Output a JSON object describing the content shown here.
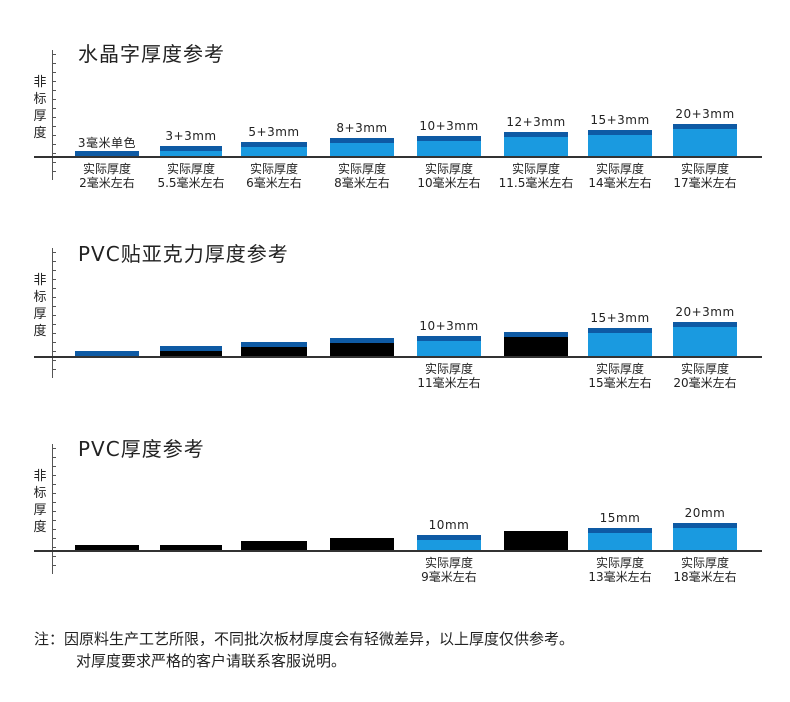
{
  "colors": {
    "blue": "#1a9ae0",
    "blue_cap": "#0e5aa4",
    "black": "#000000"
  },
  "sections": [
    {
      "title": "水晶字厚度参考",
      "ylabel": "非标厚度",
      "bars": [
        {
          "color": "blue",
          "top": "3毫米单色",
          "bot1": "",
          "bot2": ""
        },
        {
          "color": "blue",
          "top": "3+3mm",
          "bot1": "实际厚度",
          "bot2": "5.5毫米左右"
        },
        {
          "color": "blue",
          "top": "5+3mm",
          "bot1": "实际厚度",
          "bot2": "6毫米左右"
        },
        {
          "color": "blue",
          "top": "8+3mm",
          "bot1": "实际厚度",
          "bot2": "8毫米左右"
        },
        {
          "color": "blue",
          "top": "10+3mm",
          "bot1": "实际厚度",
          "bot2": "10毫米左右"
        },
        {
          "color": "blue",
          "top": "12+3mm",
          "bot1": "实际厚度",
          "bot2": "11.5毫米左右"
        },
        {
          "color": "blue",
          "top": "15+3mm",
          "bot1": "实际厚度",
          "bot2": "14毫米左右"
        },
        {
          "color": "blue",
          "top": "20+3mm",
          "bot1": "实际厚度",
          "bot2": "17毫米左右"
        }
      ],
      "first_bottom": {
        "bot1": "实际厚度",
        "bot2": "2毫米左右"
      }
    },
    {
      "title": "PVC贴亚克力厚度参考",
      "ylabel": "非标厚度",
      "bars": [
        {
          "color": "blue",
          "top": "",
          "bot1": "",
          "bot2": ""
        },
        {
          "color": "black",
          "top": "",
          "bot1": "",
          "bot2": ""
        },
        {
          "color": "black",
          "top": "",
          "bot1": "",
          "bot2": ""
        },
        {
          "color": "black",
          "top": "",
          "bot1": "",
          "bot2": ""
        },
        {
          "color": "blue",
          "top": "10+3mm",
          "bot1": "实际厚度",
          "bot2": "11毫米左右"
        },
        {
          "color": "black",
          "top": "",
          "bot1": "",
          "bot2": ""
        },
        {
          "color": "blue",
          "top": "15+3mm",
          "bot1": "实际厚度",
          "bot2": "15毫米左右"
        },
        {
          "color": "blue",
          "top": "20+3mm",
          "bot1": "实际厚度",
          "bot2": "20毫米左右"
        }
      ]
    },
    {
      "title": "PVC厚度参考",
      "ylabel": "非标厚度",
      "bars": [
        {
          "color": "black",
          "top": "",
          "bot1": "",
          "bot2": ""
        },
        {
          "color": "black",
          "top": "",
          "bot1": "",
          "bot2": ""
        },
        {
          "color": "black",
          "top": "",
          "bot1": "",
          "bot2": ""
        },
        {
          "color": "black",
          "top": "",
          "bot1": "",
          "bot2": ""
        },
        {
          "color": "blue",
          "top": "10mm",
          "bot1": "实际厚度",
          "bot2": "9毫米左右"
        },
        {
          "color": "black",
          "top": "",
          "bot1": "",
          "bot2": ""
        },
        {
          "color": "blue",
          "top": "15mm",
          "bot1": "实际厚度",
          "bot2": "13毫米左右"
        },
        {
          "color": "blue",
          "top": "20mm",
          "bot1": "实际厚度",
          "bot2": "18毫米左右"
        }
      ]
    }
  ],
  "note": {
    "line1": "注：因原料生产工艺所限，不同批次板材厚度会有轻微差异，以上厚度仅供参考。",
    "line2": "对厚度要求严格的客户请联系客服说明。"
  }
}
